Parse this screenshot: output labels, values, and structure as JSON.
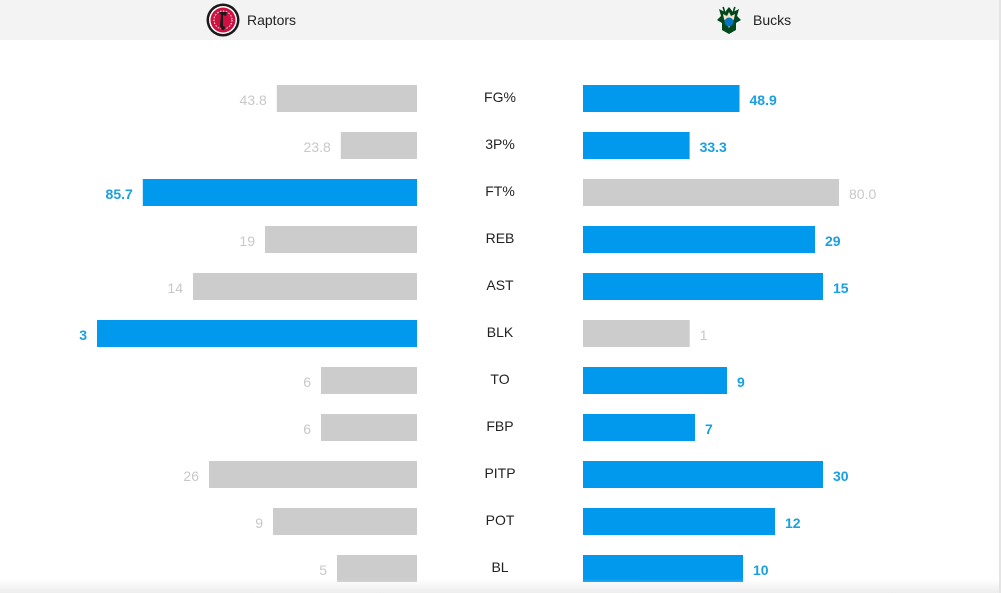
{
  "teams": {
    "away": {
      "name": "Raptors",
      "logo_icon": "raptors-logo-icon"
    },
    "home": {
      "name": "Bucks",
      "logo_icon": "bucks-logo-icon"
    }
  },
  "colors": {
    "leader": "#0099ee",
    "trailer": "#cccccc",
    "leader_text": "#1aa0e0",
    "trailer_text": "#c8c8c8",
    "stat_label": "#222222",
    "header_bg": "#f3f3f3"
  },
  "chart_data": {
    "type": "bar",
    "orientation": "horizontal-mirrored",
    "categories": [
      "FG%",
      "3P%",
      "FT%",
      "REB",
      "AST",
      "BLK",
      "TO",
      "FBP",
      "PITP",
      "POT",
      "BL"
    ],
    "series": [
      {
        "name": "Raptors",
        "side": "left",
        "values": [
          43.8,
          23.8,
          85.7,
          19,
          14,
          3,
          6,
          6,
          26,
          9,
          5
        ],
        "labels": [
          "43.8",
          "23.8",
          "85.7",
          "19",
          "14",
          "3",
          "6",
          "6",
          "26",
          "9",
          "5"
        ]
      },
      {
        "name": "Bucks",
        "side": "right",
        "values": [
          48.9,
          33.3,
          80.0,
          29,
          15,
          1,
          9,
          7,
          30,
          12,
          10
        ],
        "labels": [
          "48.9",
          "33.3",
          "80.0",
          "29",
          "15",
          "1",
          "9",
          "7",
          "30",
          "12",
          "10"
        ]
      }
    ],
    "leader": [
      "Bucks",
      "Bucks",
      "Raptors",
      "Bucks",
      "Bucks",
      "Raptors",
      "Bucks",
      "Bucks",
      "Bucks",
      "Bucks",
      "Bucks"
    ],
    "scale_max": [
      100,
      100,
      100,
      40,
      20,
      3,
      20,
      20,
      40,
      20,
      20
    ]
  }
}
